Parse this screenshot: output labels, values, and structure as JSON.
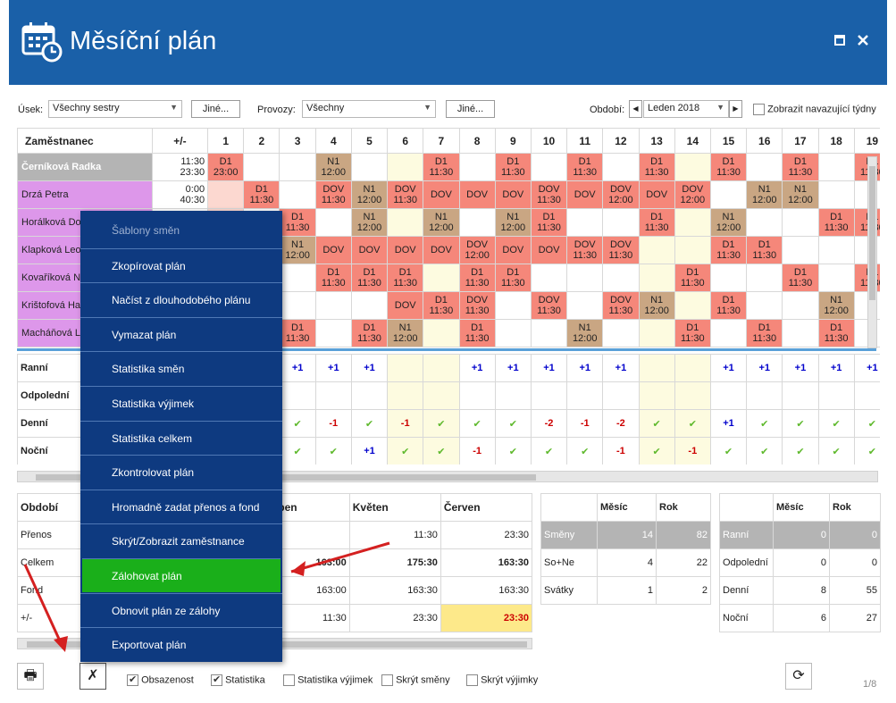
{
  "title": "Měsíční plán",
  "filters": {
    "usek_label": "Úsek:",
    "usek_value": "Všechny sestry",
    "jine": "Jiné...",
    "provozy_label": "Provozy:",
    "provozy_value": "Všechny",
    "obdobi_label": "Období:",
    "obdobi_value": "Leden 2018",
    "zobrazit": "Zobrazit navazující týdny"
  },
  "grid": {
    "col_name": "Zaměstnanec",
    "col_diff": "+/-",
    "days": [
      "1",
      "2",
      "3",
      "4",
      "5",
      "6",
      "7",
      "8",
      "9",
      "10",
      "11",
      "12",
      "13",
      "14",
      "15",
      "16",
      "17",
      "18",
      "19"
    ],
    "rows": [
      {
        "name": "Černíková Radka",
        "diff": [
          "11:30",
          "23:30"
        ],
        "cells": [
          [
            "D1",
            "23:00"
          ],
          [],
          [],
          [
            "N1",
            "12:00"
          ],
          [],
          [],
          [
            "D1",
            "11:30"
          ],
          [],
          [
            "D1",
            "11:30"
          ],
          [],
          [
            "D1",
            "11:30"
          ],
          [],
          [
            "D1",
            "11:30"
          ],
          [],
          [
            "D1",
            "11:30"
          ],
          [],
          [
            "D1",
            "11:30"
          ],
          [],
          [
            "D1",
            "11:30"
          ]
        ]
      },
      {
        "name": "Drzá Petra",
        "diff": [
          "0:00",
          "40:30"
        ],
        "cells": [
          [],
          [
            "D1",
            "11:30"
          ],
          [],
          [
            "DOV",
            "11:30"
          ],
          [
            "N1",
            "12:00"
          ],
          [
            "DOV",
            "11:30"
          ],
          [
            "DOV",
            ""
          ],
          [
            "DOV",
            ""
          ],
          [
            "DOV",
            ""
          ],
          [
            "DOV",
            "11:30"
          ],
          [
            "DOV",
            ""
          ],
          [
            "DOV",
            "12:00"
          ],
          [
            "DOV",
            ""
          ],
          [
            "DOV",
            "12:00"
          ],
          [],
          [
            "N1",
            "12:00"
          ],
          [
            "N1",
            "12:00"
          ],
          [],
          []
        ]
      },
      {
        "name": "Horálková Dor",
        "diff": [
          "",
          ""
        ],
        "cells": [
          [],
          [],
          [
            "D1",
            "11:30"
          ],
          [],
          [
            "N1",
            "12:00"
          ],
          [],
          [
            "N1",
            "12:00"
          ],
          [],
          [
            "N1",
            "12:00"
          ],
          [
            "D1",
            "11:30"
          ],
          [],
          [],
          [
            "D1",
            "11:30"
          ],
          [],
          [
            "N1",
            "12:00"
          ],
          [],
          [],
          [
            "D1",
            "11:30"
          ],
          [
            "D1",
            "11:30"
          ]
        ]
      },
      {
        "name": "Klapková Leon",
        "diff": [
          "",
          ""
        ],
        "cells": [
          [],
          [],
          [
            "N1",
            "12:00"
          ],
          [
            "DOV",
            ""
          ],
          [
            "DOV",
            ""
          ],
          [
            "DOV",
            ""
          ],
          [
            "DOV",
            ""
          ],
          [
            "DOV",
            "12:00"
          ],
          [
            "DOV",
            ""
          ],
          [
            "DOV",
            ""
          ],
          [
            "DOV",
            "11:30"
          ],
          [
            "DOV",
            "11:30"
          ],
          [],
          [],
          [
            "D1",
            "11:30"
          ],
          [
            "D1",
            "11:30"
          ],
          [],
          [],
          []
        ]
      },
      {
        "name": "Kovaříková Nin",
        "diff": [
          "",
          ""
        ],
        "cells": [
          [],
          [],
          [],
          [
            "D1",
            "11:30"
          ],
          [
            "D1",
            "11:30"
          ],
          [
            "D1",
            "11:30"
          ],
          [],
          [
            "D1",
            "11:30"
          ],
          [
            "D1",
            "11:30"
          ],
          [],
          [],
          [],
          [],
          [
            "D1",
            "11:30"
          ],
          [],
          [],
          [
            "D1",
            "11:30"
          ],
          [],
          [
            "D1",
            "11:30"
          ]
        ]
      },
      {
        "name": "Krištofová Han",
        "diff": [
          "",
          ""
        ],
        "cells": [
          [],
          [],
          [],
          [],
          [],
          [
            "DOV",
            ""
          ],
          [
            "D1",
            "11:30"
          ],
          [
            "DOV",
            "11:30"
          ],
          [],
          [
            "DOV",
            "11:30"
          ],
          [],
          [
            "DOV",
            "11:30"
          ],
          [
            "N1",
            "12:00"
          ],
          [],
          [
            "D1",
            "11:30"
          ],
          [],
          [],
          [
            "N1",
            "12:00"
          ],
          []
        ]
      },
      {
        "name": "Macháňová Lu",
        "diff": [
          "",
          ""
        ],
        "cells": [
          [],
          [],
          [
            "D1",
            "11:30"
          ],
          [],
          [
            "D1",
            "11:30"
          ],
          [
            "N1",
            "12:00"
          ],
          [],
          [
            "D1",
            "11:30"
          ],
          [],
          [],
          [
            "N1",
            "12:00"
          ],
          [],
          [],
          [
            "D1",
            "11:30"
          ],
          [],
          [
            "D1",
            "11:30"
          ],
          [],
          [
            "D1",
            "11:30"
          ],
          []
        ]
      }
    ]
  },
  "stats": {
    "rows": [
      {
        "name": "Ranní",
        "values": [
          "",
          "",
          "+1",
          "+1",
          "+1",
          "",
          "",
          "+1",
          "+1",
          "+1",
          "+1",
          "+1",
          "",
          "",
          "+1",
          "+1",
          "+1",
          "+1",
          "+1"
        ]
      },
      {
        "name": "Odpolední",
        "values": [
          "",
          "",
          "",
          "",
          "",
          "",
          "",
          "",
          "",
          "",
          "",
          "",
          "",
          "",
          "",
          "",
          "",
          "",
          ""
        ]
      },
      {
        "name": "Denní",
        "values": [
          "",
          "",
          "✔",
          "-1",
          "✔",
          "-1",
          "✔",
          "✔",
          "✔",
          "-2",
          "-1",
          "-2",
          "✔",
          "✔",
          "+1",
          "✔",
          "✔",
          "✔",
          "✔"
        ]
      },
      {
        "name": "Noční",
        "values": [
          "",
          "",
          "✔",
          "✔",
          "+1",
          "✔",
          "✔",
          "-1",
          "✔",
          "✔",
          "✔",
          "-1",
          "✔",
          "-1",
          "✔",
          "✔",
          "✔",
          "✔",
          "✔"
        ]
      }
    ]
  },
  "period": {
    "col_obdobi": "Období",
    "months": [
      "en",
      "Duben",
      "Květen",
      "Červen"
    ],
    "rows": [
      {
        "name": "Přenos",
        "values": [
          "11:30",
          "",
          "11:30",
          "23:30"
        ]
      },
      {
        "name": "Celkem",
        "values": [
          "163:3",
          "163:00",
          "175:30",
          "163:30"
        ]
      },
      {
        "name": "Fond",
        "values": [
          "163:30",
          "163:00",
          "163:30",
          "163:30"
        ]
      },
      {
        "name": "+/-",
        "values": [
          "11:30",
          "11:30",
          "23:30",
          "23:30"
        ]
      }
    ]
  },
  "summary1": {
    "headers": [
      "",
      "Měsíc",
      "Rok"
    ],
    "rows": [
      [
        "Směny",
        "14",
        "82"
      ],
      [
        "So+Ne",
        "4",
        "22"
      ],
      [
        "Svátky",
        "1",
        "2"
      ]
    ]
  },
  "summary2": {
    "headers": [
      "",
      "Měsíc",
      "Rok"
    ],
    "rows": [
      [
        "Ranní",
        "0",
        "0"
      ],
      [
        "Odpolední",
        "0",
        "0"
      ],
      [
        "Denní",
        "8",
        "55"
      ],
      [
        "Noční",
        "6",
        "27"
      ]
    ]
  },
  "menu": {
    "items": [
      "Šablony směn",
      "Zkopírovat plán",
      "Načíst z dlouhodobého plánu",
      "Vymazat plán",
      "Statistika směn",
      "Statistika výjimek",
      "Statistika celkem",
      "Zkontrolovat plán",
      "Hromadně zadat přenos a fond",
      "Skrýt/Zobrazit zaměstnance",
      "Zálohovat plán",
      "Obnovit plán ze zálohy",
      "Exportovat plán"
    ]
  },
  "bottom": {
    "obsazenost": "Obsazenost",
    "statistika": "Statistika",
    "statistika_vyjimek": "Statistika výjimek",
    "skryt_smeny": "Skrýt směny",
    "skryt_vyjimky": "Skrýt výjimky",
    "page": "1/8"
  },
  "colors": {
    "title_bg": "#1a60a8",
    "menu_bg": "#0e3a80",
    "menu_selected": "#1aaf1a",
    "shift_day": "#f5877a",
    "shift_night": "#c9a683"
  }
}
